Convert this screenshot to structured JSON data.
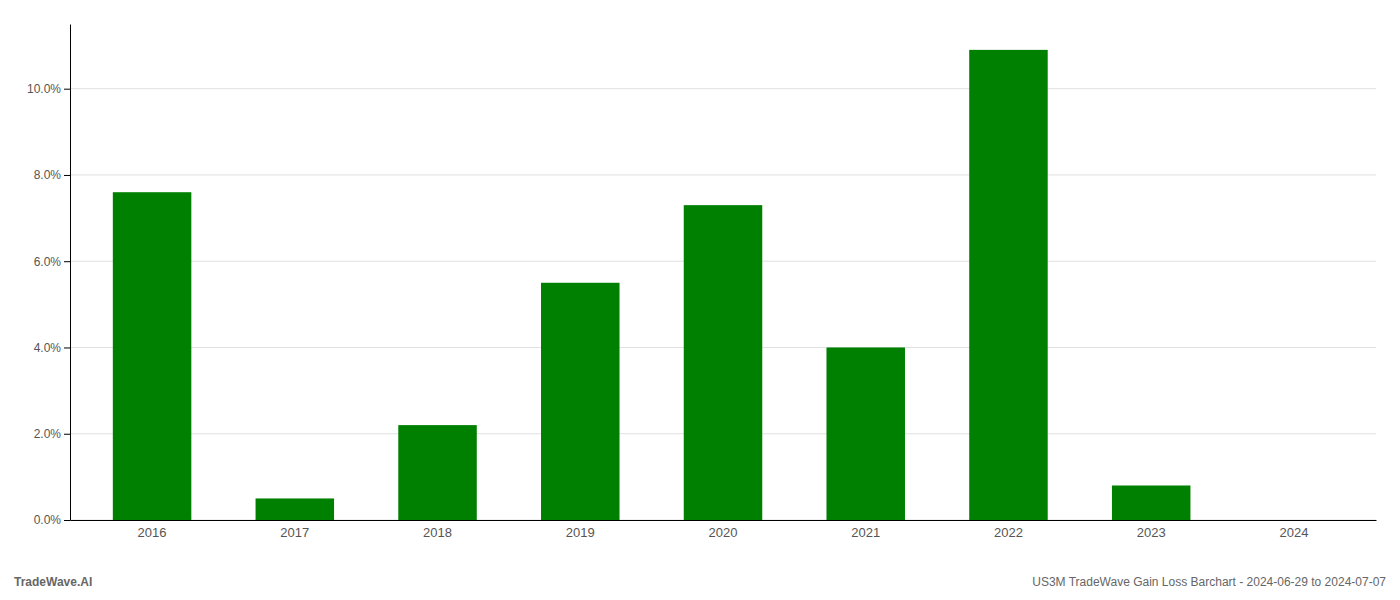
{
  "chart_data": {
    "type": "bar",
    "categories": [
      "2016",
      "2017",
      "2018",
      "2019",
      "2020",
      "2021",
      "2022",
      "2023",
      "2024"
    ],
    "values": [
      0.076,
      0.005,
      0.022,
      0.055,
      0.073,
      0.04,
      0.109,
      0.008,
      0.0
    ],
    "color": "#008000",
    "ylim": [
      0,
      0.115
    ],
    "yticks": [
      {
        "value": 0.0,
        "label": "0.0%"
      },
      {
        "value": 0.02,
        "label": "2.0%"
      },
      {
        "value": 0.04,
        "label": "4.0%"
      },
      {
        "value": 0.06,
        "label": "6.0%"
      },
      {
        "value": 0.08,
        "label": "8.0%"
      },
      {
        "value": 0.1,
        "label": "10.0%"
      }
    ],
    "grid": true,
    "annotations": [
      "TradeWave.AI",
      "US3M TradeWave Gain Loss Barchart - 2024-06-29 to 2024-07-07"
    ]
  }
}
